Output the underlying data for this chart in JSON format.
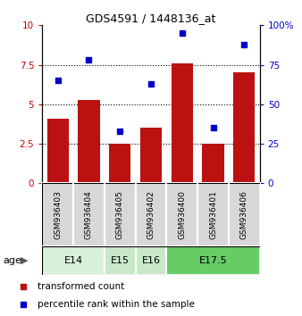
{
  "title": "GDS4591 / 1448136_at",
  "samples": [
    "GSM936403",
    "GSM936404",
    "GSM936405",
    "GSM936402",
    "GSM936400",
    "GSM936401",
    "GSM936406"
  ],
  "transformed_count": [
    4.1,
    5.25,
    2.5,
    3.5,
    7.6,
    2.5,
    7.0
  ],
  "percentile_rank": [
    65,
    78,
    33,
    63,
    95,
    35,
    88
  ],
  "age_groups": [
    {
      "label": "E14",
      "start": 0,
      "end": 2,
      "color": "#d8f0d8"
    },
    {
      "label": "E15",
      "start": 2,
      "end": 3,
      "color": "#c8e8c8"
    },
    {
      "label": "E16",
      "start": 3,
      "end": 4,
      "color": "#c8e8c8"
    },
    {
      "label": "E17.5",
      "start": 4,
      "end": 7,
      "color": "#66cc66"
    }
  ],
  "bar_color": "#bb1111",
  "dot_color": "#0000cc",
  "left_ylim": [
    0,
    10
  ],
  "right_ylim": [
    0,
    100
  ],
  "left_yticks": [
    0,
    2.5,
    5.0,
    7.5,
    10
  ],
  "left_yticklabels": [
    "0",
    "2.5",
    "5",
    "7.5",
    "10"
  ],
  "right_yticks": [
    0,
    25,
    50,
    75,
    100
  ],
  "right_yticklabels": [
    "0",
    "25",
    "50",
    "75",
    "100%"
  ],
  "dotted_lines": [
    2.5,
    5.0,
    7.5
  ],
  "legend_items": [
    {
      "color": "#bb1111",
      "label": "transformed count"
    },
    {
      "color": "#0000cc",
      "label": "percentile rank within the sample"
    }
  ],
  "age_label": "age",
  "sample_bg_color": "#d8d8d8"
}
